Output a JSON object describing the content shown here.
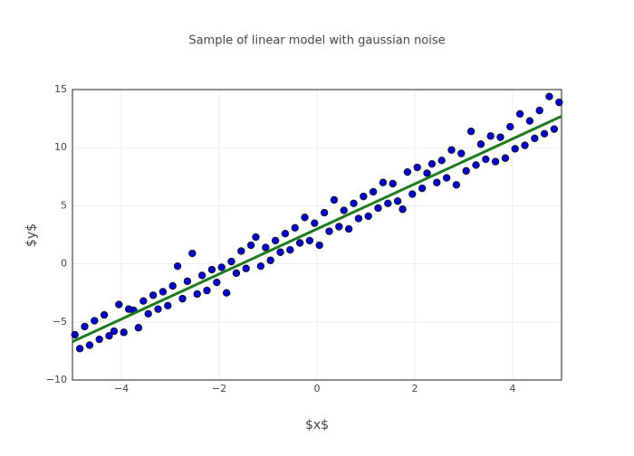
{
  "chart_data": {
    "type": "scatter",
    "title": "Sample of linear model with gaussian noise",
    "x_label": "$x$",
    "y_label": "$y$",
    "xlim": [
      -5,
      5
    ],
    "ylim": [
      -10,
      15
    ],
    "xticks": [
      {
        "value": -4,
        "label": "−4"
      },
      {
        "value": -2,
        "label": "−2"
      },
      0,
      2,
      4
    ],
    "yticks": [
      {
        "value": -10,
        "label": "−10"
      },
      {
        "value": -5,
        "label": "−5"
      },
      0,
      5,
      10,
      15
    ],
    "grid": true,
    "series": [
      {
        "mode": "markers",
        "color": "#0000cc",
        "x": [
          -4.95,
          -4.85,
          -4.75,
          -4.65,
          -4.55,
          -4.45,
          -4.35,
          -4.25,
          -4.15,
          -4.05,
          -3.95,
          -3.85,
          -3.75,
          -3.65,
          -3.55,
          -3.45,
          -3.35,
          -3.25,
          -3.15,
          -3.05,
          -2.95,
          -2.85,
          -2.75,
          -2.65,
          -2.55,
          -2.45,
          -2.35,
          -2.25,
          -2.15,
          -2.05,
          -1.95,
          -1.85,
          -1.75,
          -1.65,
          -1.55,
          -1.45,
          -1.35,
          -1.25,
          -1.15,
          -1.05,
          -0.95,
          -0.85,
          -0.75,
          -0.65,
          -0.55,
          -0.45,
          -0.35,
          -0.25,
          -0.15,
          -0.05,
          0.05,
          0.15,
          0.25,
          0.35,
          0.45,
          0.55,
          0.65,
          0.75,
          0.85,
          0.95,
          1.05,
          1.15,
          1.25,
          1.35,
          1.45,
          1.55,
          1.65,
          1.75,
          1.85,
          1.95,
          2.05,
          2.15,
          2.25,
          2.35,
          2.45,
          2.55,
          2.65,
          2.75,
          2.85,
          2.95,
          3.05,
          3.15,
          3.25,
          3.35,
          3.45,
          3.55,
          3.65,
          3.75,
          3.85,
          3.95,
          4.05,
          4.15,
          4.25,
          4.35,
          4.45,
          4.55,
          4.65,
          4.75,
          4.85,
          4.95
        ],
        "values": [
          -6.1,
          -7.3,
          -5.4,
          -7.0,
          -4.9,
          -6.5,
          -4.4,
          -6.2,
          -5.8,
          -3.5,
          -5.9,
          -3.9,
          -4.0,
          -5.5,
          -3.2,
          -4.3,
          -2.7,
          -3.9,
          -2.4,
          -3.6,
          -1.9,
          -0.2,
          -3.0,
          -1.5,
          0.9,
          -2.6,
          -1.0,
          -2.3,
          -0.5,
          -1.6,
          -0.3,
          -2.5,
          0.2,
          -0.8,
          1.1,
          -0.4,
          1.6,
          2.3,
          -0.2,
          1.4,
          0.3,
          2.0,
          1.0,
          2.6,
          1.2,
          3.1,
          1.8,
          4.0,
          2.0,
          3.5,
          1.6,
          4.4,
          2.8,
          5.5,
          3.2,
          4.6,
          3.0,
          5.2,
          3.9,
          5.8,
          4.1,
          6.2,
          4.8,
          7.0,
          5.2,
          6.9,
          5.4,
          4.7,
          7.9,
          6.0,
          8.3,
          6.5,
          7.8,
          8.6,
          7.0,
          8.9,
          7.4,
          9.8,
          6.8,
          9.5,
          8.0,
          11.4,
          8.5,
          10.3,
          9.0,
          11.0,
          8.8,
          10.9,
          9.1,
          11.8,
          9.9,
          12.9,
          10.2,
          12.3,
          10.8,
          13.2,
          11.2,
          14.4,
          11.6,
          13.9
        ]
      },
      {
        "mode": "lines",
        "color": "#1f7a1f",
        "x": [
          -5,
          5
        ],
        "values": [
          -6.7,
          12.7
        ]
      }
    ]
  }
}
